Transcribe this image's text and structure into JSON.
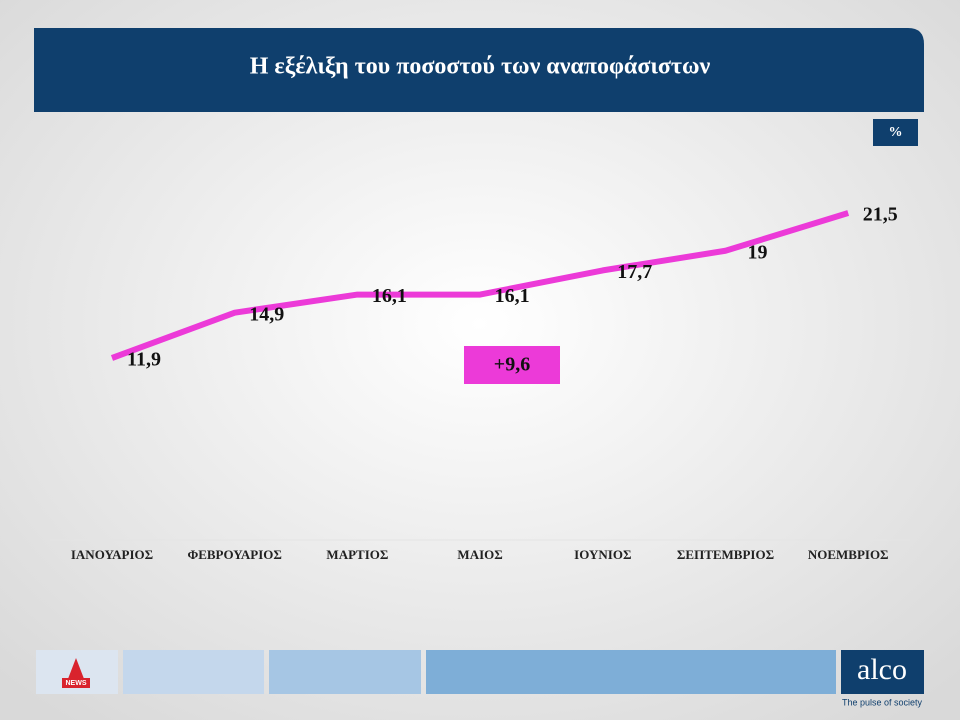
{
  "chart_data": {
    "type": "line",
    "title": "Η εξέλιξη του ποσοστού των αναποφάσιστων",
    "unit_label": "%",
    "categories": [
      "ΙΑΝΟΥΑΡΙΟΣ",
      "ΦΕΒΡΟΥΑΡΙΟΣ",
      "ΜΑΡΤΙΟΣ",
      "ΜΑΙΟΣ",
      "ΙΟΥΝΙΟΣ",
      "ΣΕΠΤΕΜΒΡΙΟΣ",
      "ΝΟΕΜΒΡΙΟΣ"
    ],
    "values": [
      11.9,
      14.9,
      16.1,
      16.1,
      17.7,
      19,
      21.5
    ],
    "value_labels": [
      "11,9",
      "14,9",
      "16,1",
      "16,1",
      "17,7",
      "19",
      "21,5"
    ],
    "color": "#ec3ad8",
    "annotation": "+9,6"
  },
  "footer": {
    "news_logo": "NEWS",
    "brand": "alco",
    "tagline": "The pulse of society"
  }
}
